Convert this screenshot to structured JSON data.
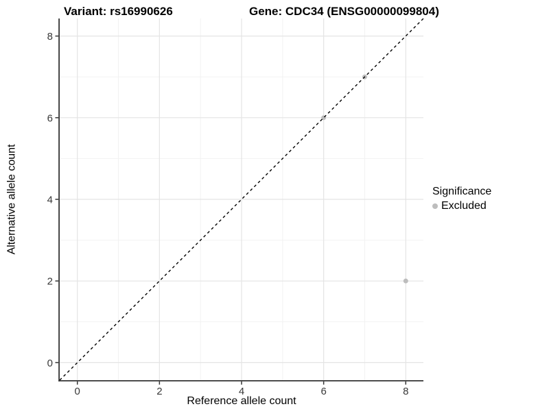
{
  "header": {
    "title_variant": "Variant: rs16990626",
    "title_gene": "Gene: CDC34 (ENSG00000099804)"
  },
  "chart_data": {
    "type": "scatter",
    "title": "Variant: rs16990626   Gene: CDC34 (ENSG00000099804)",
    "xlabel": "Reference allele count",
    "ylabel": "Alternative allele count",
    "xlim": [
      -0.43,
      8.43
    ],
    "ylim": [
      -0.43,
      8.43
    ],
    "xticks": [
      0,
      2,
      4,
      6,
      8
    ],
    "yticks": [
      0,
      2,
      4,
      6,
      8
    ],
    "minor_xticks": [
      1,
      3,
      5,
      7
    ],
    "minor_yticks": [
      1,
      3,
      5,
      7
    ],
    "grid": "major and minor, light gray on white",
    "legend_position": "right",
    "reference_line": {
      "kind": "identity",
      "slope": 1,
      "intercept": 0,
      "style": "dashed",
      "color": "#000000"
    },
    "series": [
      {
        "name": "Excluded",
        "color": "#bdbdbd",
        "points": [
          [
            6,
            6
          ],
          [
            7,
            7
          ],
          [
            8,
            2
          ]
        ]
      }
    ],
    "legend": {
      "title": "Significance",
      "items": [
        {
          "label": "Excluded",
          "color": "#bdbdbd"
        }
      ]
    }
  },
  "colors": {
    "background": "#ffffff",
    "major_grid": "#e4e4e4",
    "minor_grid": "#f2f2f2",
    "axis_line": "#333333",
    "tick_label": "#383838",
    "point": "#bdbdbd"
  }
}
